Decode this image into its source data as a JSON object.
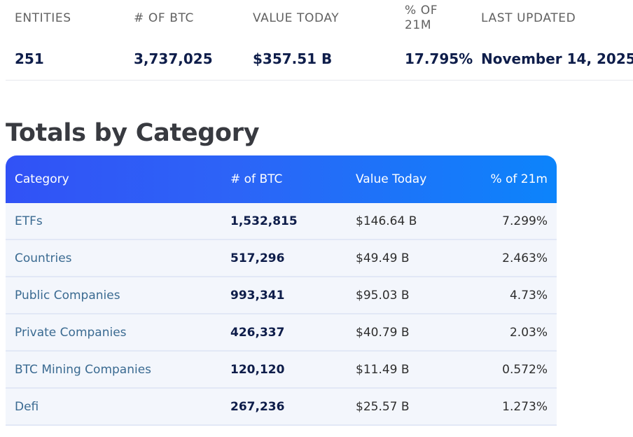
{
  "summary": {
    "headers": [
      "ENTITIES",
      "# OF BTC",
      "VALUE TODAY",
      "% OF 21M",
      "LAST UPDATED"
    ],
    "values": [
      "251",
      "3,737,025",
      "$357.51 B",
      "17.795%",
      "November 14, 2025"
    ]
  },
  "section_title": "Totals by Category",
  "table": {
    "columns": [
      "Category",
      "# of BTC",
      "Value Today",
      "% of 21m"
    ],
    "rows": [
      {
        "category": "ETFs",
        "btc": "1,532,815",
        "value": "$146.64 B",
        "pct": "7.299%"
      },
      {
        "category": "Countries",
        "btc": "517,296",
        "value": "$49.49 B",
        "pct": "2.463%"
      },
      {
        "category": "Public Companies",
        "btc": "993,341",
        "value": "$95.03 B",
        "pct": "4.73%"
      },
      {
        "category": "Private Companies",
        "btc": "426,337",
        "value": "$40.79 B",
        "pct": "2.03%"
      },
      {
        "category": "BTC Mining Companies",
        "btc": "120,120",
        "value": "$11.49 B",
        "pct": "0.572%"
      },
      {
        "category": "Defi",
        "btc": "267,236",
        "value": "$25.57 B",
        "pct": "1.273%"
      }
    ]
  },
  "colors": {
    "header_gradient_start": "#3152f6",
    "header_gradient_end": "#0c84fb",
    "link_text": "#3a6a91",
    "value_text": "#0e1d4a",
    "row_background": "#f3f6fc"
  }
}
